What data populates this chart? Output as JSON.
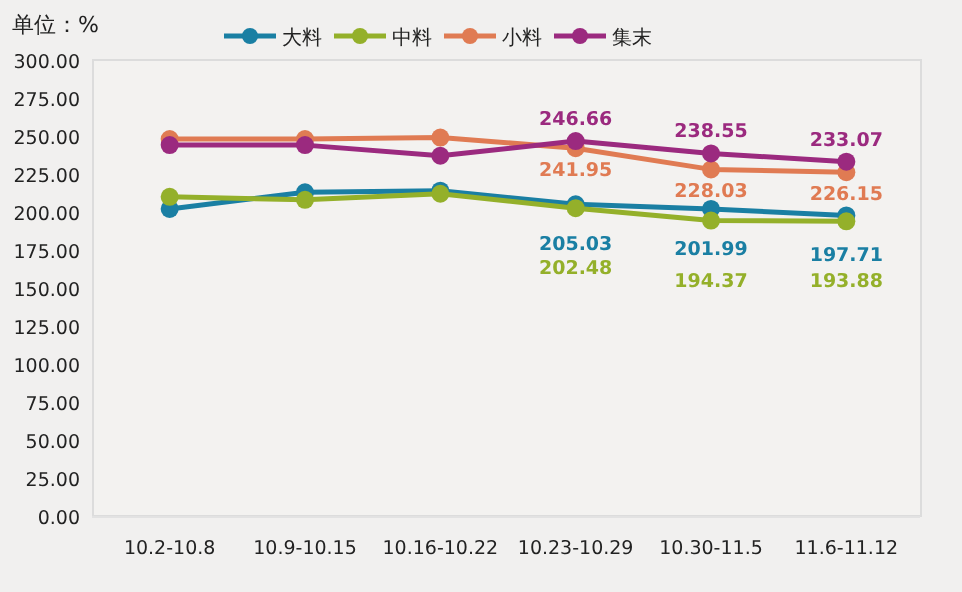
{
  "chart_data": {
    "type": "line",
    "ylabel": "单位：%",
    "categories": [
      "10.2-10.8",
      "10.9-10.15",
      "10.16-10.22",
      "10.23-10.29",
      "10.30-11.5",
      "11.6-11.12"
    ],
    "series": [
      {
        "name": "大料",
        "color": "#1a7fa3",
        "values": [
          202,
          213,
          214,
          205.03,
          201.99,
          197.71
        ],
        "value_labels": [
          null,
          null,
          null,
          "205.03",
          "201.99",
          "197.71"
        ]
      },
      {
        "name": "中料",
        "color": "#94b02a",
        "values": [
          210,
          208,
          212,
          202.48,
          194.37,
          193.88
        ],
        "value_labels": [
          null,
          null,
          null,
          "202.48",
          "194.37",
          "193.88"
        ]
      },
      {
        "name": "小料",
        "color": "#e07b53",
        "values": [
          248,
          248,
          249,
          241.95,
          228.03,
          226.15
        ],
        "value_labels": [
          null,
          null,
          null,
          "241.95",
          "228.03",
          "226.15"
        ]
      },
      {
        "name": "集末",
        "color": "#9b2a7f",
        "values": [
          244,
          244,
          237,
          246.66,
          238.55,
          233.07
        ],
        "value_labels": [
          null,
          null,
          null,
          "246.66",
          "238.55",
          "233.07"
        ]
      }
    ],
    "ylim": [
      0,
      300
    ],
    "yticks": [
      {
        "value": 0,
        "label": "0.00"
      },
      {
        "value": 25,
        "label": "25.00"
      },
      {
        "value": 50,
        "label": "50.00"
      },
      {
        "value": 75,
        "label": "75.00"
      },
      {
        "value": 100,
        "label": "100.00"
      },
      {
        "value": 125,
        "label": "125.00"
      },
      {
        "value": 150,
        "label": "150.00"
      },
      {
        "value": 175,
        "label": "175.00"
      },
      {
        "value": 200,
        "label": "200.00"
      },
      {
        "value": 225,
        "label": "225.00"
      },
      {
        "value": 250,
        "label": "250.00"
      },
      {
        "value": 275,
        "label": "275.00"
      },
      {
        "value": 300,
        "label": "300.00"
      }
    ],
    "legend": "top",
    "marker": "circle",
    "line_style": "solid",
    "grid": false
  }
}
